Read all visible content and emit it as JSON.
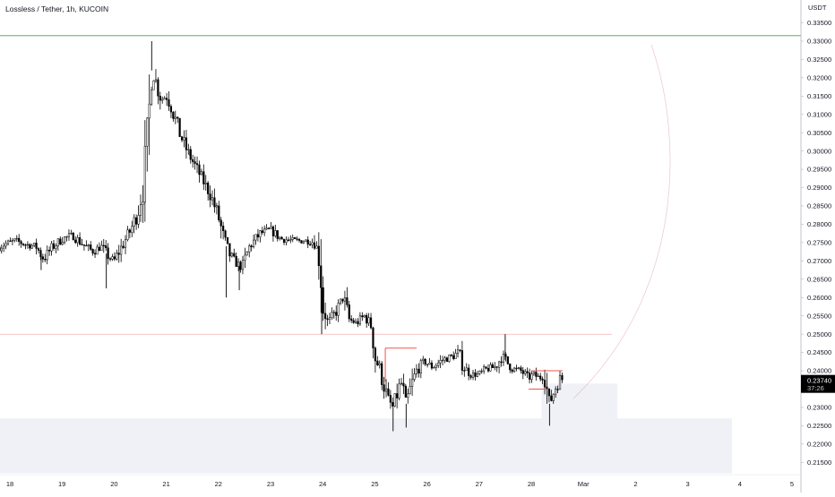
{
  "header": {
    "symbol": "Lossless / Tether",
    "interval": "1h",
    "exchange": "KUCOIN",
    "separator": ", "
  },
  "colors": {
    "up_candle": "#ffffff",
    "down_candle": "#000000",
    "wick": "#000000",
    "grid": "#f0f3fa",
    "axis_text": "#131722",
    "green_line": "#43a047",
    "red_line": "#ef5350",
    "zone_fill": "#f0f1f6",
    "price_tag_bg": "#000000",
    "price_tag_text": "#ffffff"
  },
  "chart_data": {
    "type": "candlestick",
    "y_unit": "USDT",
    "ylim": [
      0.21,
      0.338
    ],
    "y_ticks": [
      "0.33500",
      "0.33000",
      "0.32500",
      "0.32000",
      "0.31500",
      "0.31000",
      "0.30500",
      "0.30000",
      "0.29500",
      "0.29000",
      "0.28500",
      "0.28000",
      "0.27500",
      "0.27000",
      "0.26500",
      "0.26000",
      "0.25500",
      "0.25000",
      "0.24500",
      "0.24000",
      "0.23500",
      "0.23000",
      "0.22500",
      "0.22000",
      "0.21500"
    ],
    "x_ticks": [
      {
        "label": "18",
        "day": 18
      },
      {
        "label": "19",
        "day": 19
      },
      {
        "label": "20",
        "day": 20
      },
      {
        "label": "21",
        "day": 21
      },
      {
        "label": "22",
        "day": 22
      },
      {
        "label": "23",
        "day": 23
      },
      {
        "label": "24",
        "day": 24
      },
      {
        "label": "25",
        "day": 25
      },
      {
        "label": "26",
        "day": 26
      },
      {
        "label": "27",
        "day": 27
      },
      {
        "label": "28",
        "day": 28
      },
      {
        "label": "Mar",
        "day": 29
      },
      {
        "label": "2",
        "day": 30
      },
      {
        "label": "3",
        "day": 31
      },
      {
        "label": "4",
        "day": 32
      },
      {
        "label": "5",
        "day": 33
      }
    ],
    "last_price": "0.23740",
    "countdown": "37:26",
    "key_path": [
      [
        17.75,
        0.2735
      ],
      [
        17.9,
        0.2745
      ],
      [
        18.1,
        0.2755
      ],
      [
        18.3,
        0.2745
      ],
      [
        18.5,
        0.274
      ],
      [
        18.65,
        0.2705
      ],
      [
        18.8,
        0.2735
      ],
      [
        19.0,
        0.276
      ],
      [
        19.2,
        0.277
      ],
      [
        19.4,
        0.2745
      ],
      [
        19.6,
        0.2725
      ],
      [
        19.75,
        0.274
      ],
      [
        19.9,
        0.271
      ],
      [
        20.0,
        0.27
      ],
      [
        20.15,
        0.274
      ],
      [
        20.3,
        0.278
      ],
      [
        20.45,
        0.283
      ],
      [
        20.55,
        0.29
      ],
      [
        20.65,
        0.305
      ],
      [
        20.72,
        0.322
      ],
      [
        20.8,
        0.319
      ],
      [
        20.9,
        0.314
      ],
      [
        21.0,
        0.315
      ],
      [
        21.1,
        0.312
      ],
      [
        21.25,
        0.305
      ],
      [
        21.4,
        0.3
      ],
      [
        21.55,
        0.296
      ],
      [
        21.7,
        0.292
      ],
      [
        21.85,
        0.288
      ],
      [
        22.0,
        0.282
      ],
      [
        22.1,
        0.276
      ],
      [
        22.2,
        0.272
      ],
      [
        22.3,
        0.27
      ],
      [
        22.45,
        0.268
      ],
      [
        22.6,
        0.274
      ],
      [
        22.8,
        0.2775
      ],
      [
        23.0,
        0.2785
      ],
      [
        23.2,
        0.276
      ],
      [
        23.45,
        0.2755
      ],
      [
        23.7,
        0.2755
      ],
      [
        23.85,
        0.275
      ],
      [
        23.95,
        0.27
      ],
      [
        24.0,
        0.258
      ],
      [
        24.1,
        0.253
      ],
      [
        24.25,
        0.256
      ],
      [
        24.4,
        0.26
      ],
      [
        24.5,
        0.254
      ],
      [
        24.65,
        0.253
      ],
      [
        24.8,
        0.255
      ],
      [
        24.95,
        0.252
      ],
      [
        25.0,
        0.244
      ],
      [
        25.1,
        0.24
      ],
      [
        25.25,
        0.232
      ],
      [
        25.35,
        0.23
      ],
      [
        25.5,
        0.237
      ],
      [
        25.6,
        0.231
      ],
      [
        25.7,
        0.236
      ],
      [
        25.8,
        0.24
      ],
      [
        25.95,
        0.2425
      ],
      [
        26.1,
        0.241
      ],
      [
        26.3,
        0.243
      ],
      [
        26.5,
        0.244
      ],
      [
        26.6,
        0.245
      ],
      [
        26.7,
        0.241
      ],
      [
        26.85,
        0.239
      ],
      [
        27.0,
        0.239
      ],
      [
        27.15,
        0.2405
      ],
      [
        27.3,
        0.241
      ],
      [
        27.45,
        0.244
      ],
      [
        27.55,
        0.242
      ],
      [
        27.65,
        0.2405
      ],
      [
        27.8,
        0.24
      ],
      [
        27.95,
        0.238
      ],
      [
        28.05,
        0.239
      ],
      [
        28.15,
        0.238
      ],
      [
        28.25,
        0.2385
      ],
      [
        28.35,
        0.231
      ],
      [
        28.45,
        0.235
      ],
      [
        28.55,
        0.238
      ],
      [
        28.62,
        0.2374
      ]
    ],
    "spike_wicks": [
      {
        "day": 20.72,
        "high": 0.33
      },
      {
        "day": 21.45,
        "high": 0.3
      },
      {
        "day": 22.15,
        "low": 0.26
      },
      {
        "day": 22.4,
        "low": 0.262
      },
      {
        "day": 23.98,
        "low": 0.25
      },
      {
        "day": 25.35,
        "low": 0.2235
      },
      {
        "day": 25.6,
        "low": 0.2245
      },
      {
        "day": 27.5,
        "high": 0.25
      },
      {
        "day": 28.35,
        "low": 0.225
      },
      {
        "day": 19.85,
        "low": 0.2625
      },
      {
        "day": 18.6,
        "low": 0.2675
      }
    ],
    "horizontal_lines": [
      {
        "price": 0.3315,
        "color": "green"
      },
      {
        "price": 0.25,
        "color": "red"
      }
    ],
    "zones": [
      {
        "from_day": 17.7,
        "to_day": 31.85,
        "top": 0.227,
        "bottom": 0.212
      },
      {
        "from_day": 28.2,
        "to_day": 29.65,
        "top": 0.2365,
        "bottom": 0.2255
      }
    ],
    "red_markers": [
      {
        "from_day": 25.2,
        "to_day": 25.8,
        "price": 0.2462,
        "drop_to": 0.237
      },
      {
        "from_day": 28.0,
        "to_day": 28.6,
        "price": 0.24
      },
      {
        "from_day": 27.95,
        "to_day": 28.3,
        "price": 0.235
      }
    ]
  }
}
